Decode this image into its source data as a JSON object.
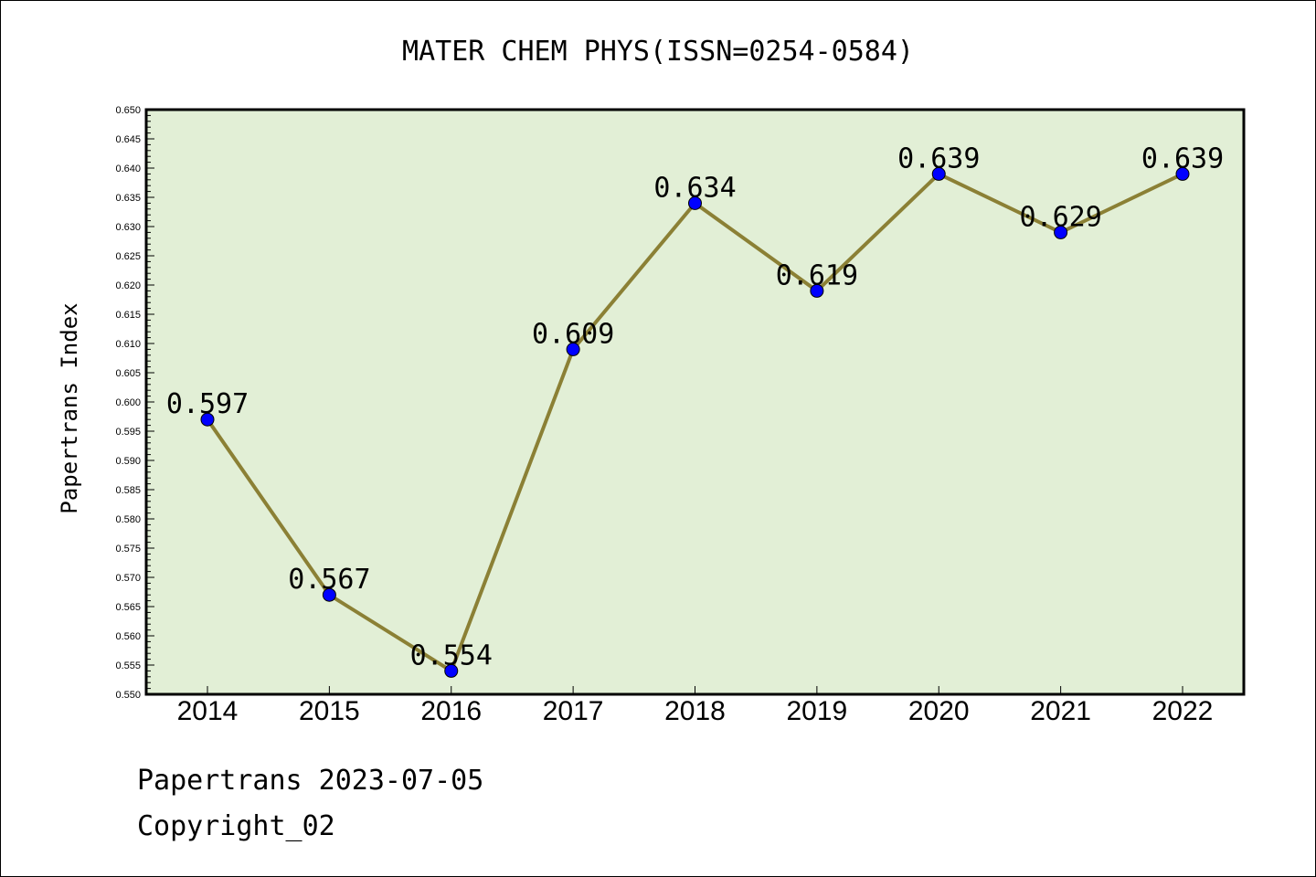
{
  "chart_data": {
    "type": "line",
    "title": "MATER CHEM PHYS(ISSN=0254-0584)",
    "xlabel": "",
    "ylabel": "Papertrans Index",
    "categories": [
      "2014",
      "2015",
      "2016",
      "2017",
      "2018",
      "2019",
      "2020",
      "2021",
      "2022"
    ],
    "series": [
      {
        "values": [
          0.597,
          0.567,
          0.554,
          0.609,
          0.634,
          0.619,
          0.639,
          0.629,
          0.639
        ],
        "data_labels": [
          "0.597",
          "0.567",
          "0.554",
          "0.609",
          "0.634",
          "0.619",
          "0.639",
          "0.629",
          "0.639"
        ]
      }
    ],
    "ylim": [
      0.55,
      0.65
    ],
    "yticks": [
      "0.550",
      "0.555",
      "0.560",
      "0.565",
      "0.570",
      "0.575",
      "0.580",
      "0.585",
      "0.590",
      "0.595",
      "0.600",
      "0.605",
      "0.610",
      "0.615",
      "0.620",
      "0.625",
      "0.630",
      "0.635",
      "0.640",
      "0.645",
      "0.650"
    ],
    "grid": false,
    "legend": "none",
    "colors": {
      "plot_background": "#e2efd6",
      "line": "#8b8035",
      "marker": "#0000ff"
    }
  },
  "footer": {
    "line1": "Papertrans 2023-07-05",
    "line2": "Copyright_02"
  }
}
